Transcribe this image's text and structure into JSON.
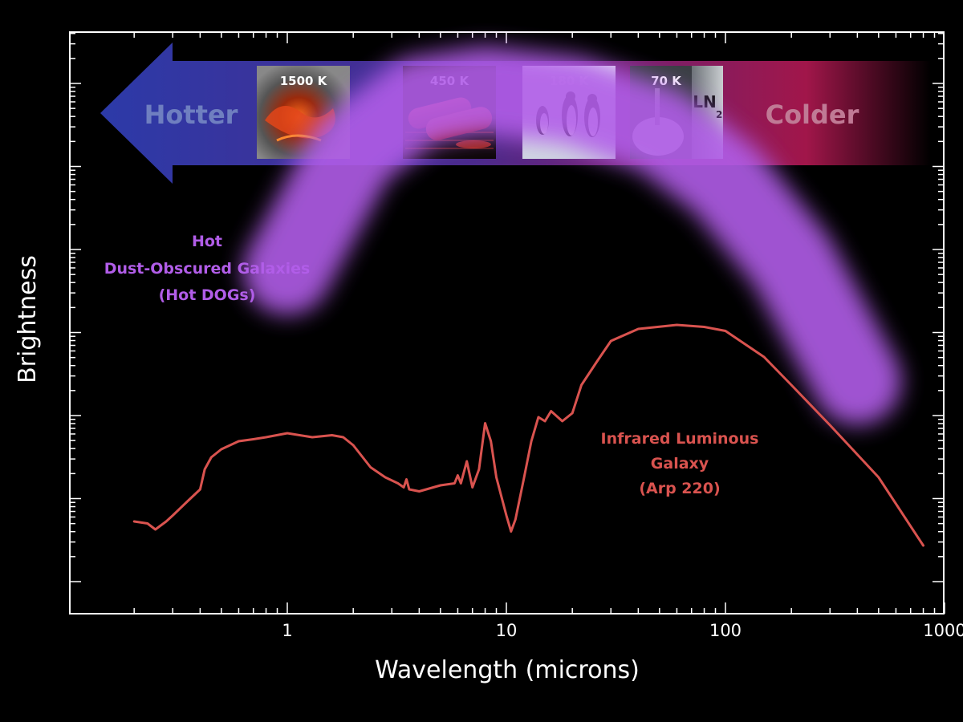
{
  "chart_data": {
    "type": "line",
    "title": "",
    "xlabel": "Wavelength (microns)",
    "ylabel": "Brightness",
    "x_scale": "log",
    "xlim": [
      0.1,
      1000
    ],
    "x_ticks": [
      1,
      10,
      100,
      1000
    ],
    "x_tick_labels": [
      "1",
      "10",
      "100",
      "1000"
    ],
    "y_scale": "log",
    "y_tick_labels_shown": false,
    "grid": false,
    "series": [
      {
        "name": "Infrared Luminous Galaxy (Arp 220)",
        "label_lines": [
          "Infrared Luminous",
          "Galaxy",
          "(Arp 220)"
        ],
        "color": "#d9534f",
        "points": [
          [
            0.2,
            0.3
          ],
          [
            0.23,
            0.29
          ],
          [
            0.25,
            0.26
          ],
          [
            0.28,
            0.3
          ],
          [
            0.3,
            0.33
          ],
          [
            0.35,
            0.4
          ],
          [
            0.4,
            0.46
          ],
          [
            0.42,
            0.56
          ],
          [
            0.45,
            0.62
          ],
          [
            0.5,
            0.66
          ],
          [
            0.6,
            0.7
          ],
          [
            0.7,
            0.71
          ],
          [
            0.8,
            0.72
          ],
          [
            1.0,
            0.74
          ],
          [
            1.3,
            0.72
          ],
          [
            1.6,
            0.73
          ],
          [
            1.8,
            0.72
          ],
          [
            2.0,
            0.68
          ],
          [
            2.4,
            0.57
          ],
          [
            2.8,
            0.52
          ],
          [
            3.2,
            0.49
          ],
          [
            3.4,
            0.47
          ],
          [
            3.5,
            0.51
          ],
          [
            3.6,
            0.46
          ],
          [
            4.0,
            0.45
          ],
          [
            5.0,
            0.48
          ],
          [
            5.8,
            0.49
          ],
          [
            6.0,
            0.53
          ],
          [
            6.2,
            0.49
          ],
          [
            6.6,
            0.6
          ],
          [
            7.0,
            0.47
          ],
          [
            7.5,
            0.56
          ],
          [
            8.0,
            0.79
          ],
          [
            8.5,
            0.7
          ],
          [
            9.0,
            0.52
          ],
          [
            10.0,
            0.33
          ],
          [
            10.5,
            0.25
          ],
          [
            11.0,
            0.31
          ],
          [
            12.0,
            0.51
          ],
          [
            13.0,
            0.7
          ],
          [
            14.0,
            0.82
          ],
          [
            15.0,
            0.8
          ],
          [
            16.0,
            0.85
          ],
          [
            18.0,
            0.8
          ],
          [
            20.0,
            0.84
          ],
          [
            22.0,
            0.98
          ],
          [
            26.0,
            1.1
          ],
          [
            30.0,
            1.2
          ],
          [
            40.0,
            1.26
          ],
          [
            60.0,
            1.28
          ],
          [
            80.0,
            1.27
          ],
          [
            100.0,
            1.25
          ],
          [
            150.0,
            1.12
          ],
          [
            200.0,
            0.98
          ],
          [
            300.0,
            0.78
          ],
          [
            500.0,
            0.52
          ],
          [
            800.0,
            0.18
          ]
        ]
      }
    ],
    "annotations": {
      "hot_dogs": {
        "label_lines": [
          "Hot",
          "Dust-Obscured Galaxies",
          "(Hot DOGs)"
        ],
        "color": "#b15de8",
        "band": [
          [
            1.0,
            1.55
          ],
          [
            2.0,
            2.15
          ],
          [
            4.0,
            2.4
          ],
          [
            8.0,
            2.45
          ],
          [
            20.0,
            2.4
          ],
          [
            50.0,
            2.25
          ],
          [
            100.0,
            2.0
          ],
          [
            200.0,
            1.6
          ],
          [
            400.0,
            1.0
          ]
        ]
      }
    }
  },
  "temperature_bar": {
    "hotter_label": "Hotter",
    "colder_label": "Colder",
    "color_hot": "#2c3aa8",
    "color_mid": "#4b2a8c",
    "color_cold": "#a1164a",
    "swatches": [
      {
        "label": "1500 K",
        "icon": "lava-icon"
      },
      {
        "label": "450 K",
        "icon": "sausages-icon"
      },
      {
        "label": "180 K",
        "icon": "penguins-icon"
      },
      {
        "label": "70 K",
        "icon": "liquid-nitrogen-icon",
        "caption": "LN"
      }
    ]
  }
}
